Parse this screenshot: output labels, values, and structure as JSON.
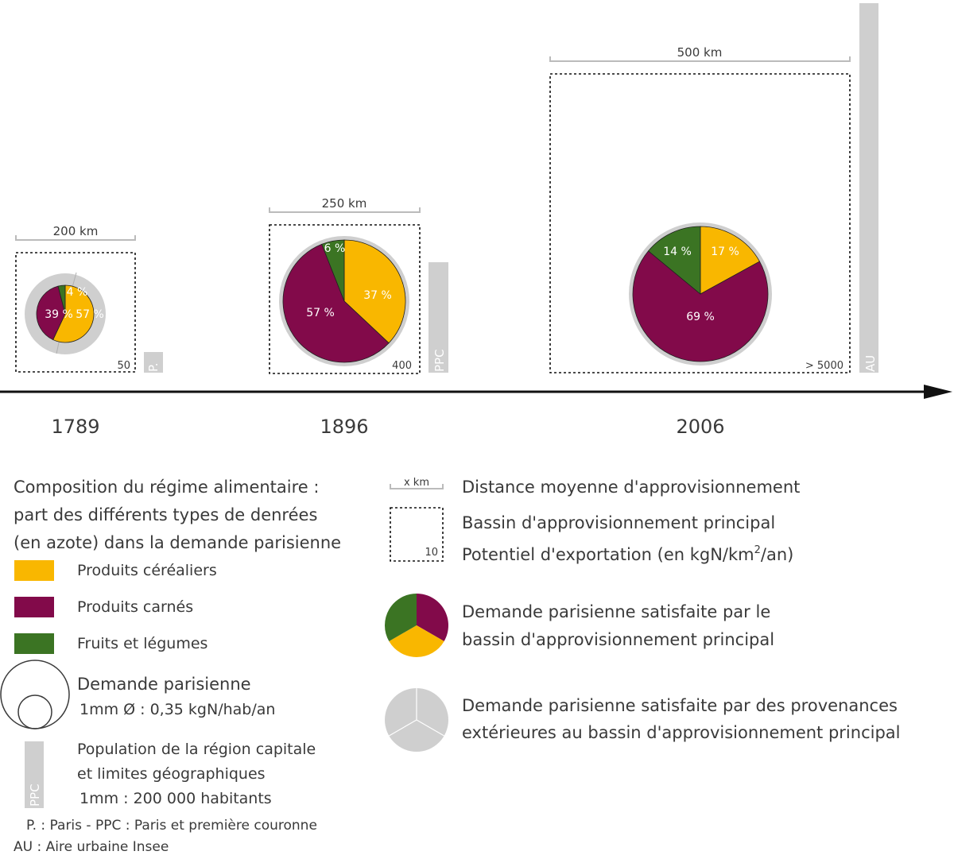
{
  "colors": {
    "cereal": "#F9B700",
    "meat": "#820A4A",
    "veg": "#3B7423",
    "external": "#CFCFCF",
    "text": "#3a3a3a"
  },
  "timeline": {
    "periods": [
      {
        "year": "1789",
        "distance_label": "200 km",
        "potential_label": "50",
        "population_label": "P.",
        "shares": {
          "cereal": "57 %",
          "meat": "39 %",
          "veg": "4 %"
        }
      },
      {
        "year": "1896",
        "distance_label": "250 km",
        "potential_label": "400",
        "population_label": "PPC",
        "shares": {
          "cereal": "37 %",
          "meat": "57 %",
          "veg": "6 %"
        }
      },
      {
        "year": "2006",
        "distance_label": "500 km",
        "potential_label": "> 5000",
        "population_label": "AU",
        "shares": {
          "cereal": "17 %",
          "meat": "69 %",
          "veg": "14 %"
        }
      }
    ]
  },
  "chart_data": [
    {
      "type": "pie",
      "period": "1789",
      "categories": [
        "Produits céréaliers",
        "Produits carnés",
        "Fruits et légumes"
      ],
      "values": [
        57,
        39,
        4
      ],
      "outer_ring": "external"
    },
    {
      "type": "pie",
      "period": "1896",
      "categories": [
        "Produits céréaliers",
        "Produits carnés",
        "Fruits et légumes"
      ],
      "values": [
        37,
        57,
        6
      ]
    },
    {
      "type": "pie",
      "period": "2006",
      "categories": [
        "Produits céréaliers",
        "Produits carnés",
        "Fruits et légumes"
      ],
      "values": [
        17,
        69,
        14
      ]
    }
  ],
  "legend": {
    "composition_title": [
      "Composition du régime alimentaire :",
      "part des différents types de denrées",
      "(en azote) dans la demande parisienne"
    ],
    "cereal_label": "Produits céréaliers",
    "meat_label": "Produits carnés",
    "veg_label": "Fruits et légumes",
    "demand_title": "Demande parisienne",
    "demand_scale": "1mm Ø : 0,35 kgN/hab/an",
    "population_lines": [
      "Population de la région capitale",
      "et limites géographiques",
      "1mm : 200 000 habitants"
    ],
    "population_bar_label": "PPC",
    "abbrev_lines": [
      "P. : Paris - PPC : Paris et première couronne",
      "AU : Aire urbaine Insee"
    ],
    "distance_icon_label": "x km",
    "distance_label": "Distance moyenne d'approvisionnement",
    "basin_label": "Bassin d'approvisionnement principal",
    "potential_icon_label": "10",
    "potential_label_main": "Potentiel d'exportation (en kgN/km",
    "potential_label_sup": "2",
    "potential_label_end": "/an)",
    "satisfied_main_lines": [
      "Demande parisienne satisfaite par le",
      "bassin d'approvisionnement principal"
    ],
    "satisfied_ext_lines": [
      "Demande parisienne satisfaite par des provenances",
      "extérieures au bassin d'approvisionnement principal"
    ]
  }
}
